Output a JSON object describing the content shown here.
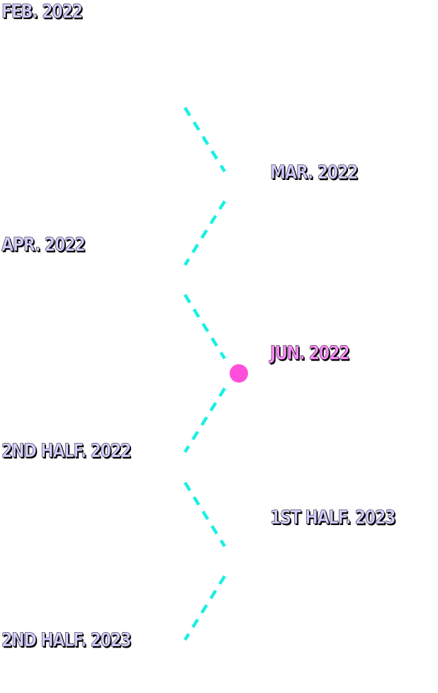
{
  "colors": {
    "connector": "#19f0e4",
    "label": "#d6ccff",
    "label_current": "#ff8cff",
    "label_outline": "#000000",
    "current_marker": "#ff4fda"
  },
  "milestones": [
    {
      "label": "FEB. 2022",
      "side": "left",
      "current": false
    },
    {
      "label": "MAR. 2022",
      "side": "right",
      "current": false
    },
    {
      "label": "APR. 2022",
      "side": "left",
      "current": false
    },
    {
      "label": "JUN. 2022",
      "side": "right",
      "current": true
    },
    {
      "label": "2ND HALF. 2022",
      "side": "left",
      "current": false
    },
    {
      "label": "1ST HALF. 2023",
      "side": "right",
      "current": false
    },
    {
      "label": "2ND HALF. 2023",
      "side": "left",
      "current": false
    }
  ]
}
